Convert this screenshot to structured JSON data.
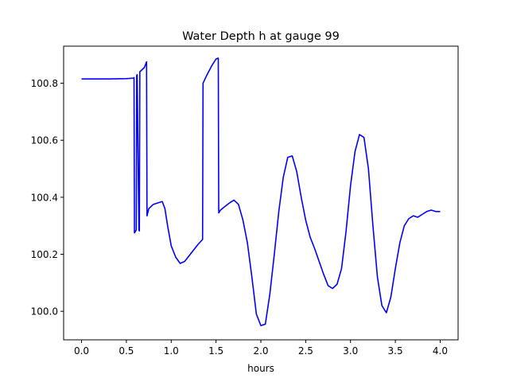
{
  "chart_data": {
    "type": "line",
    "title": "Water Depth h at gauge 99",
    "xlabel": "hours",
    "ylabel": "",
    "xlim": [
      -0.2,
      4.2
    ],
    "ylim": [
      99.9,
      100.93
    ],
    "xticks": [
      0.0,
      0.5,
      1.0,
      1.5,
      2.0,
      2.5,
      3.0,
      3.5,
      4.0
    ],
    "xtick_labels": [
      "0.0",
      "0.5",
      "1.0",
      "1.5",
      "2.0",
      "2.5",
      "3.0",
      "3.5",
      "4.0"
    ],
    "yticks": [
      100.0,
      100.2,
      100.4,
      100.6,
      100.8
    ],
    "ytick_labels": [
      "100.0",
      "100.2",
      "100.4",
      "100.6",
      "100.8"
    ],
    "grid": false,
    "legend": "none",
    "series": [
      {
        "color": "#0000ff",
        "x": [
          0.0,
          0.3,
          0.5,
          0.58,
          0.585,
          0.59,
          0.6,
          0.61,
          0.615,
          0.62,
          0.64,
          0.645,
          0.65,
          0.7,
          0.725,
          0.73,
          0.75,
          0.8,
          0.85,
          0.9,
          0.93,
          0.96,
          1.0,
          1.05,
          1.1,
          1.15,
          1.2,
          1.25,
          1.3,
          1.35,
          1.355,
          1.4,
          1.45,
          1.5,
          1.525,
          1.53,
          1.55,
          1.6,
          1.65,
          1.7,
          1.75,
          1.8,
          1.85,
          1.9,
          1.95,
          2.0,
          2.05,
          2.1,
          2.15,
          2.2,
          2.25,
          2.3,
          2.35,
          2.4,
          2.45,
          2.5,
          2.55,
          2.6,
          2.65,
          2.7,
          2.75,
          2.8,
          2.85,
          2.9,
          2.95,
          3.0,
          3.05,
          3.1,
          3.15,
          3.2,
          3.25,
          3.3,
          3.35,
          3.4,
          3.45,
          3.5,
          3.55,
          3.6,
          3.65,
          3.7,
          3.75,
          3.8,
          3.85,
          3.9,
          3.95,
          4.0
        ],
        "y": [
          100.815,
          100.815,
          100.816,
          100.818,
          100.82,
          100.275,
          100.28,
          100.285,
          100.827,
          100.83,
          100.285,
          100.282,
          100.84,
          100.855,
          100.875,
          100.335,
          100.36,
          100.375,
          100.38,
          100.385,
          100.36,
          100.3,
          100.23,
          100.19,
          100.168,
          100.175,
          100.195,
          100.215,
          100.235,
          100.252,
          100.8,
          100.83,
          100.86,
          100.885,
          100.888,
          100.345,
          100.355,
          100.368,
          100.38,
          100.39,
          100.375,
          100.32,
          100.24,
          100.12,
          99.99,
          99.95,
          99.955,
          100.06,
          100.2,
          100.35,
          100.47,
          100.54,
          100.545,
          100.49,
          100.4,
          100.32,
          100.26,
          100.22,
          100.175,
          100.13,
          100.09,
          100.08,
          100.095,
          100.15,
          100.28,
          100.44,
          100.56,
          100.62,
          100.61,
          100.5,
          100.3,
          100.12,
          100.02,
          99.995,
          100.05,
          100.15,
          100.24,
          100.3,
          100.325,
          100.335,
          100.33,
          100.34,
          100.35,
          100.355,
          100.35,
          100.35
        ]
      }
    ]
  }
}
